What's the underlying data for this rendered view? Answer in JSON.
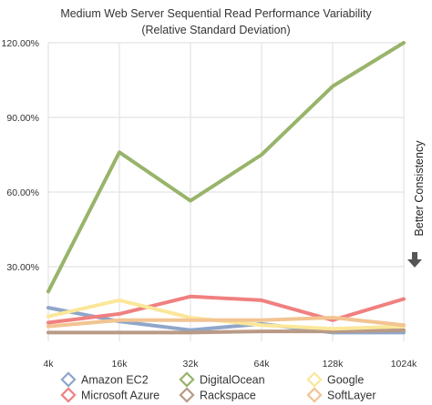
{
  "chart_data": {
    "type": "line",
    "title": "Medium Web Server Sequential Read Performance Variability",
    "subtitle": "(Relative Standard Deviation)",
    "x": [
      "4k",
      "16k",
      "32k",
      "64k",
      "128k",
      "1024k"
    ],
    "ylim": [
      0,
      120
    ],
    "yticks": [
      "30.00%",
      "60.00%",
      "90.00%",
      "120.00%"
    ],
    "ytick_values": [
      30,
      60,
      90,
      120
    ],
    "grid": true,
    "side_label": "Better Consistency",
    "legend_position": "bottom",
    "series": [
      {
        "name": "Amazon EC2",
        "color": "#8fa6c9",
        "values": [
          13.5,
          8,
          4.5,
          7,
          3.5,
          3.5
        ]
      },
      {
        "name": "Microsoft Azure",
        "color": "#f08080",
        "values": [
          7.5,
          11,
          18,
          16.5,
          8.5,
          17
        ]
      },
      {
        "name": "DigitalOcean",
        "color": "#98b46a",
        "values": [
          20,
          76,
          56.5,
          75,
          102.5,
          120
        ]
      },
      {
        "name": "Rackspace",
        "color": "#b99a86",
        "values": [
          3.5,
          3.5,
          3.5,
          4,
          4,
          4.5
        ]
      },
      {
        "name": "Google",
        "color": "#fbe79a",
        "values": [
          10,
          16.5,
          9.5,
          6.5,
          5,
          6
        ]
      },
      {
        "name": "SoftLayer",
        "color": "#f2c492",
        "values": [
          6,
          8.5,
          8.5,
          8.5,
          9.5,
          6.5
        ]
      }
    ]
  }
}
